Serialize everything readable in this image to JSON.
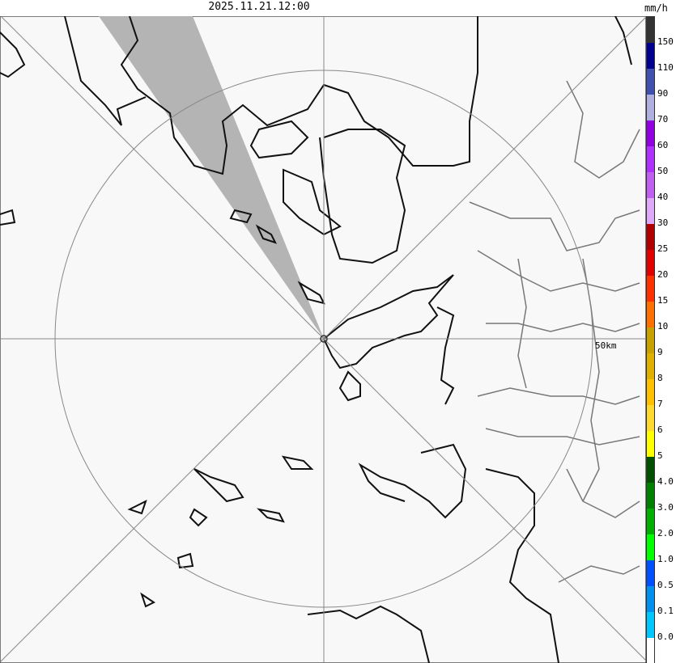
{
  "title": "2025.11.21.12:00",
  "legend": {
    "unit": "mm/h",
    "labels": [
      "150",
      "110",
      "90",
      "70",
      "60",
      "50",
      "40",
      "30",
      "25",
      "20",
      "15",
      "10",
      "9",
      "8",
      "7",
      "6",
      "5",
      "4.0",
      "3.0",
      "2.0",
      "1.0",
      "0.5",
      "0.1",
      "0.0"
    ],
    "colors": [
      "#333333",
      "#000090",
      "#4050b0",
      "#b0b0e0",
      "#9000e0",
      "#b030ff",
      "#c060f0",
      "#e0a8f8",
      "#b00000",
      "#e00000",
      "#ff3000",
      "#ff7000",
      "#c8a000",
      "#e0b000",
      "#ffc000",
      "#ffd830",
      "#ffff00",
      "#005000",
      "#008000",
      "#00b000",
      "#00ff00",
      "#0050ff",
      "#0090f0",
      "#00c8ff",
      "#ffffff"
    ]
  },
  "map": {
    "range_ring_label": "50km",
    "background_color": "#f8f8f8",
    "blocked_sector_color": "#b4b4b4"
  }
}
